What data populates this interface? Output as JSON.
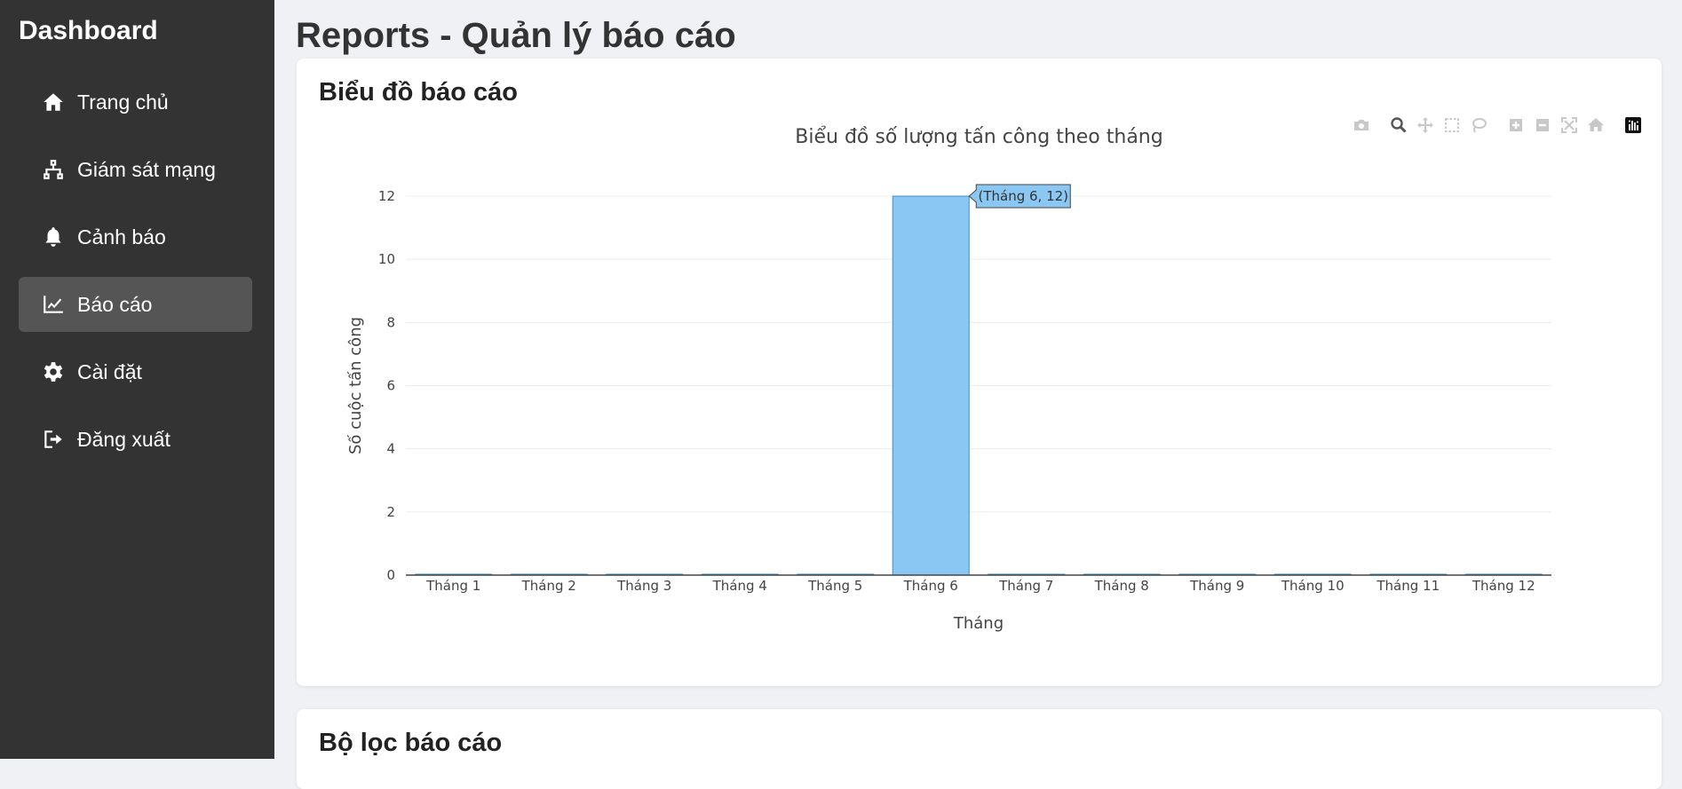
{
  "sidebar": {
    "brand": "Dashboard",
    "items": [
      {
        "label": "Trang chủ",
        "icon": "home-icon"
      },
      {
        "label": "Giám sát mạng",
        "icon": "network-icon"
      },
      {
        "label": "Cảnh báo",
        "icon": "bell-icon"
      },
      {
        "label": "Báo cáo",
        "icon": "chart-line-icon",
        "active": true
      },
      {
        "label": "Cài đặt",
        "icon": "gear-icon"
      },
      {
        "label": "Đăng xuất",
        "icon": "logout-icon"
      }
    ]
  },
  "page": {
    "title": "Reports - Quản lý báo cáo"
  },
  "chart_card": {
    "title": "Biểu đồ báo cáo"
  },
  "filter_card": {
    "title": "Bộ lọc báo cáo"
  },
  "modebar": [
    "camera-icon",
    "zoom-icon",
    "pan-icon",
    "box-select-icon",
    "lasso-icon",
    "zoom-in-icon",
    "zoom-out-icon",
    "autoscale-icon",
    "reset-axes-icon",
    "plotly-logo-icon"
  ],
  "chart_data": {
    "type": "bar",
    "title": "Biểu đồ số lượng tấn công theo tháng",
    "xlabel": "Tháng",
    "ylabel": "Số cuộc tấn công",
    "categories": [
      "Tháng 1",
      "Tháng 2",
      "Tháng 3",
      "Tháng 4",
      "Tháng 5",
      "Tháng 6",
      "Tháng 7",
      "Tháng 8",
      "Tháng 9",
      "Tháng 10",
      "Tháng 11",
      "Tháng 12"
    ],
    "values": [
      0,
      0,
      0,
      0,
      0,
      12,
      0,
      0,
      0,
      0,
      0,
      0
    ],
    "ylim": [
      0,
      12
    ],
    "yticks": [
      "0",
      "2",
      "4",
      "6",
      "8",
      "10",
      "12"
    ],
    "grid": true,
    "bar_color": "#8ac8f3",
    "bar_edge_color": "#3a8fc9",
    "hover_label": "(Tháng 6, 12)"
  }
}
